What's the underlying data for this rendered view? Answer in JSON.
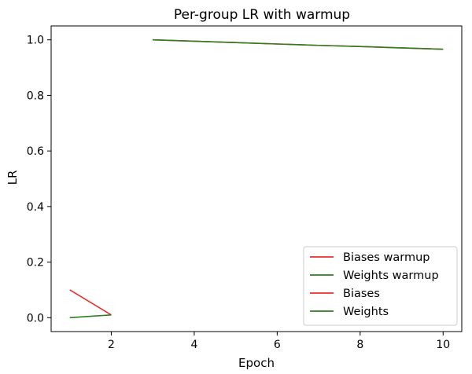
{
  "chart_data": {
    "type": "line",
    "title": "Per-group LR with warmup",
    "xlabel": "Epoch",
    "ylabel": "LR",
    "xlim": [
      0.55,
      10.45
    ],
    "ylim": [
      -0.05,
      1.05
    ],
    "x_ticks": [
      2,
      4,
      6,
      8,
      10
    ],
    "y_ticks": [
      "0.0",
      "0.2",
      "0.4",
      "0.6",
      "0.8",
      "1.0"
    ],
    "grid": false,
    "legend_position": "lower-right",
    "series": [
      {
        "name": "Biases warmup",
        "color": "#e8302a",
        "x": [
          1,
          2
        ],
        "y": [
          0.1,
          0.01
        ]
      },
      {
        "name": "Weights warmup",
        "color": "#2e7d1f",
        "x": [
          1,
          2
        ],
        "y": [
          0.0,
          0.01
        ]
      },
      {
        "name": "Biases",
        "color": "#e8302a",
        "x": [
          3,
          4,
          5,
          6,
          7,
          8,
          9,
          10
        ],
        "y": [
          1.0,
          0.995,
          0.99,
          0.985,
          0.98,
          0.976,
          0.971,
          0.966
        ]
      },
      {
        "name": "Weights",
        "color": "#2e7d1f",
        "x": [
          3,
          4,
          5,
          6,
          7,
          8,
          9,
          10
        ],
        "y": [
          1.0,
          0.995,
          0.99,
          0.985,
          0.98,
          0.976,
          0.971,
          0.966
        ]
      }
    ]
  }
}
